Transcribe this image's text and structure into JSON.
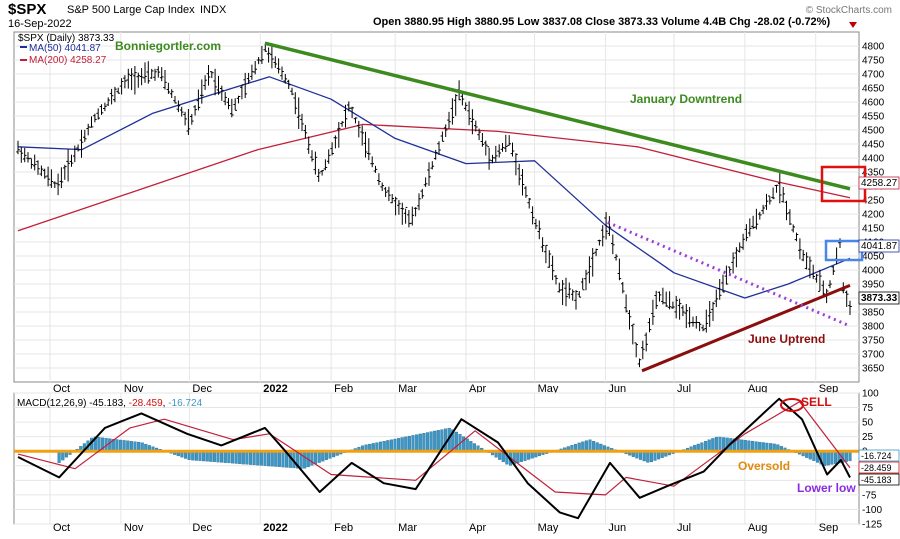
{
  "header": {
    "ticker": "$SPX",
    "name": "S&P 500 Large Cap Index",
    "exchange": "INDX",
    "date": "16-Sep-2022",
    "ohlc_text": "Open 3880.95  High 3880.95  Low 3837.08  Close 3873.33  Volume 4.4B  Chg -28.02 (-0.72%)",
    "watermark": "© StockCharts.com"
  },
  "legend": {
    "price": "$SPX (Daily) 3873.33",
    "ma50": "MA(50) 4041.87",
    "ma200": "MA(200) 4258.27"
  },
  "annotations": {
    "site": "Bonniegortler.com",
    "downtrend": "January Downtrend",
    "uptrend": "June Uptrend",
    "sell": "SELL",
    "oversold": "Oversold",
    "lower_low": "Lower low"
  },
  "macd_legend": {
    "prefix": "MACD(12,26,9) ",
    "v1": "-45.183",
    "sep1": ", ",
    "v2": "-28.459",
    "sep2": ", ",
    "v3": "-16.724"
  },
  "price_value_labels": {
    "ma200": "4258.27",
    "ma50": "4041.87",
    "close": "3873.33"
  },
  "macd_value_labels": {
    "hist": "-16.724",
    "signal": "-28.459",
    "macd": "-45.183"
  },
  "colors": {
    "price": "#000000",
    "ma50": "#1f2f9a",
    "ma200": "#c0203a",
    "downtrend": "#3d8a1f",
    "uptrend": "#8b0d0d",
    "dotted": "#9b3ed6",
    "histogram": "#3c97c6",
    "zero_line": "#f0a010",
    "oversold": "#e08a10",
    "lower_low": "#8a2be2",
    "sell": "#d01010",
    "box_red": "#e01010",
    "box_blue": "#4a86e8"
  },
  "chart_data": [
    {
      "type": "candlestick",
      "title": "$SPX S&P 500 Large Cap Index INDX",
      "ylim": [
        3600,
        4850
      ],
      "y_ticks": [
        3650,
        3700,
        3750,
        3800,
        3850,
        3900,
        3950,
        4000,
        4050,
        4100,
        4150,
        4200,
        4250,
        4300,
        4350,
        4400,
        4450,
        4500,
        4550,
        4600,
        4650,
        4700,
        4750,
        4800
      ],
      "x_ticks": [
        "Oct",
        "Nov",
        "Dec",
        "2022",
        "Feb",
        "Mar",
        "Apr",
        "May",
        "Jun",
        "Jul",
        "Aug",
        "Sep"
      ],
      "x_range": [
        "2021-09-17",
        "2022-09-16"
      ],
      "series": [
        {
          "name": "$SPX (Daily)",
          "points": [
            [
              "2021-09-17",
              4432
            ],
            [
              "2021-10-04",
              4300
            ],
            [
              "2021-10-21",
              4550
            ],
            [
              "2021-11-04",
              4680
            ],
            [
              "2021-11-18",
              4705
            ],
            [
              "2021-12-01",
              4515
            ],
            [
              "2021-12-10",
              4710
            ],
            [
              "2021-12-20",
              4570
            ],
            [
              "2022-01-03",
              4793
            ],
            [
              "2022-01-14",
              4660
            ],
            [
              "2022-01-27",
              4326
            ],
            [
              "2022-02-09",
              4587
            ],
            [
              "2022-02-24",
              4288
            ],
            [
              "2022-03-08",
              4170
            ],
            [
              "2022-03-29",
              4632
            ],
            [
              "2022-04-12",
              4397
            ],
            [
              "2022-04-20",
              4460
            ],
            [
              "2022-05-02",
              4155
            ],
            [
              "2022-05-12",
              3930
            ],
            [
              "2022-05-20",
              3901
            ],
            [
              "2022-06-02",
              4176
            ],
            [
              "2022-06-16",
              3667
            ],
            [
              "2022-06-24",
              3911
            ],
            [
              "2022-07-06",
              3845
            ],
            [
              "2022-07-14",
              3790
            ],
            [
              "2022-08-01",
              4118
            ],
            [
              "2022-08-16",
              4305
            ],
            [
              "2022-08-26",
              4057
            ],
            [
              "2022-09-06",
              3908
            ],
            [
              "2022-09-12",
              4110
            ],
            [
              "2022-09-13",
              3932
            ],
            [
              "2022-09-16",
              3873.33
            ]
          ]
        },
        {
          "name": "MA(50)",
          "points": [
            [
              "2021-09-17",
              4440
            ],
            [
              "2021-10-15",
              4430
            ],
            [
              "2021-11-15",
              4560
            ],
            [
              "2021-12-20",
              4650
            ],
            [
              "2022-01-05",
              4690
            ],
            [
              "2022-02-01",
              4610
            ],
            [
              "2022-03-01",
              4470
            ],
            [
              "2022-04-01",
              4380
            ],
            [
              "2022-05-01",
              4390
            ],
            [
              "2022-06-01",
              4160
            ],
            [
              "2022-07-01",
              3990
            ],
            [
              "2022-08-01",
              3900
            ],
            [
              "2022-08-20",
              3950
            ],
            [
              "2022-09-16",
              4041.87
            ]
          ]
        },
        {
          "name": "MA(200)",
          "points": [
            [
              "2021-09-17",
              4140
            ],
            [
              "2021-12-31",
              4430
            ],
            [
              "2022-02-15",
              4520
            ],
            [
              "2022-04-15",
              4495
            ],
            [
              "2022-06-15",
              4440
            ],
            [
              "2022-08-15",
              4315
            ],
            [
              "2022-09-16",
              4258.27
            ]
          ]
        },
        {
          "name": "January Downtrend",
          "points": [
            [
              "2022-01-03",
              4810
            ],
            [
              "2022-09-16",
              4290
            ]
          ]
        },
        {
          "name": "June Uptrend",
          "points": [
            [
              "2022-06-17",
              3640
            ],
            [
              "2022-09-16",
              3945
            ]
          ]
        },
        {
          "name": "dotted trendline",
          "points": [
            [
              "2022-06-02",
              4170
            ],
            [
              "2022-09-16",
              3800
            ]
          ]
        }
      ]
    },
    {
      "type": "line",
      "title": "MACD(12,26,9)",
      "ylim": [
        -125,
        100
      ],
      "y_ticks": [
        -125,
        -100,
        -75,
        -50,
        -25,
        0,
        25,
        50,
        75,
        100
      ],
      "x_ticks": [
        "Oct",
        "Nov",
        "Dec",
        "2022",
        "Feb",
        "Mar",
        "Apr",
        "May",
        "Jun",
        "Jul",
        "Aug",
        "Sep"
      ],
      "series": [
        {
          "name": "MACD",
          "points": [
            [
              "2021-09-17",
              -10
            ],
            [
              "2021-10-05",
              -45
            ],
            [
              "2021-10-25",
              40
            ],
            [
              "2021-11-10",
              65
            ],
            [
              "2021-11-30",
              30
            ],
            [
              "2021-12-15",
              10
            ],
            [
              "2022-01-03",
              40
            ],
            [
              "2022-01-12",
              0
            ],
            [
              "2022-01-27",
              -70
            ],
            [
              "2022-02-10",
              -20
            ],
            [
              "2022-02-24",
              -55
            ],
            [
              "2022-03-10",
              -65
            ],
            [
              "2022-03-30",
              55
            ],
            [
              "2022-04-15",
              15
            ],
            [
              "2022-04-28",
              -55
            ],
            [
              "2022-05-12",
              -105
            ],
            [
              "2022-05-20",
              -115
            ],
            [
              "2022-06-03",
              -20
            ],
            [
              "2022-06-16",
              -80
            ],
            [
              "2022-06-28",
              -60
            ],
            [
              "2022-07-14",
              -35
            ],
            [
              "2022-07-25",
              10
            ],
            [
              "2022-08-16",
              90
            ],
            [
              "2022-08-26",
              55
            ],
            [
              "2022-09-06",
              -40
            ],
            [
              "2022-09-12",
              -15
            ],
            [
              "2022-09-16",
              -45.183
            ]
          ]
        },
        {
          "name": "Signal",
          "points": [
            [
              "2021-09-17",
              -5
            ],
            [
              "2021-10-12",
              -30
            ],
            [
              "2021-11-05",
              40
            ],
            [
              "2021-11-20",
              55
            ],
            [
              "2021-12-20",
              20
            ],
            [
              "2022-01-05",
              30
            ],
            [
              "2022-02-01",
              -40
            ],
            [
              "2022-03-10",
              -50
            ],
            [
              "2022-04-05",
              35
            ],
            [
              "2022-05-10",
              -70
            ],
            [
              "2022-06-01",
              -75
            ],
            [
              "2022-06-10",
              -45
            ],
            [
              "2022-07-01",
              -60
            ],
            [
              "2022-08-01",
              30
            ],
            [
              "2022-08-25",
              85
            ],
            [
              "2022-09-16",
              -28.459
            ]
          ]
        },
        {
          "name": "Histogram",
          "points": [
            [
              "2021-10-05",
              -20
            ],
            [
              "2021-10-20",
              25
            ],
            [
              "2021-11-10",
              15
            ],
            [
              "2021-12-01",
              -15
            ],
            [
              "2022-01-20",
              -30
            ],
            [
              "2022-02-15",
              10
            ],
            [
              "2022-03-25",
              40
            ],
            [
              "2022-04-20",
              -25
            ],
            [
              "2022-05-25",
              20
            ],
            [
              "2022-06-20",
              -20
            ],
            [
              "2022-07-20",
              25
            ],
            [
              "2022-08-15",
              12
            ],
            [
              "2022-09-05",
              -25
            ],
            [
              "2022-09-16",
              -16.724
            ]
          ]
        }
      ]
    }
  ]
}
